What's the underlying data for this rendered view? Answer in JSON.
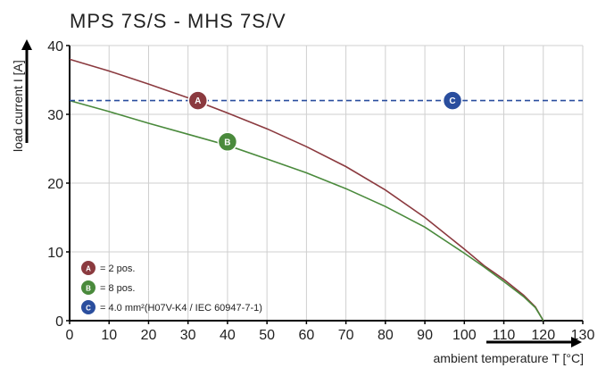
{
  "chart_data": {
    "type": "line",
    "title": "MPS 7S/S - MHS 7S/V",
    "xlabel": "ambient temperature T [°C]",
    "ylabel": "load current I [A]",
    "xlim": [
      0,
      130
    ],
    "ylim": [
      0,
      40
    ],
    "x_ticks": [
      0,
      10,
      20,
      30,
      40,
      50,
      60,
      70,
      80,
      90,
      100,
      110,
      120,
      130
    ],
    "y_ticks": [
      0,
      10,
      20,
      30,
      40
    ],
    "grid": true,
    "series": [
      {
        "name": "A",
        "color": "#8b3a3f",
        "style": "solid",
        "x": [
          0,
          10,
          20,
          30,
          40,
          50,
          60,
          70,
          80,
          90,
          100,
          105,
          110,
          115,
          118,
          120
        ],
        "y": [
          38,
          36.3,
          34.4,
          32.4,
          30.2,
          27.9,
          25.3,
          22.4,
          19.0,
          15.0,
          10.4,
          8.0,
          6.0,
          3.7,
          2.0,
          0
        ]
      },
      {
        "name": "B",
        "color": "#4a8a3c",
        "style": "solid",
        "x": [
          0,
          10,
          20,
          30,
          40,
          50,
          60,
          70,
          80,
          90,
          100,
          105,
          110,
          115,
          118,
          120
        ],
        "y": [
          32,
          30.4,
          28.7,
          27.1,
          25.5,
          23.5,
          21.5,
          19.2,
          16.6,
          13.6,
          9.8,
          7.8,
          5.7,
          3.5,
          1.9,
          0
        ]
      },
      {
        "name": "C",
        "color": "#2a4e9e",
        "style": "dashed",
        "x": [
          0,
          130
        ],
        "y": [
          32,
          32
        ]
      }
    ],
    "markers": [
      {
        "label": "A",
        "x": 32.5,
        "y": 32,
        "color": "#8b3a3f"
      },
      {
        "label": "B",
        "x": 40,
        "y": 26,
        "color": "#4a8a3c"
      },
      {
        "label": "C",
        "x": 97,
        "y": 32,
        "color": "#2a4e9e"
      }
    ],
    "legend": {
      "placement": "bottom-left",
      "entries": [
        {
          "label": "A",
          "text": "= 2 pos.",
          "color": "#8b3a3f"
        },
        {
          "label": "B",
          "text": "= 8 pos.",
          "color": "#4a8a3c"
        },
        {
          "label": "C",
          "text": "= 4.0 mm²(H07V-K4 / IEC 60947-7-1)",
          "color": "#2a4e9e"
        }
      ]
    }
  }
}
